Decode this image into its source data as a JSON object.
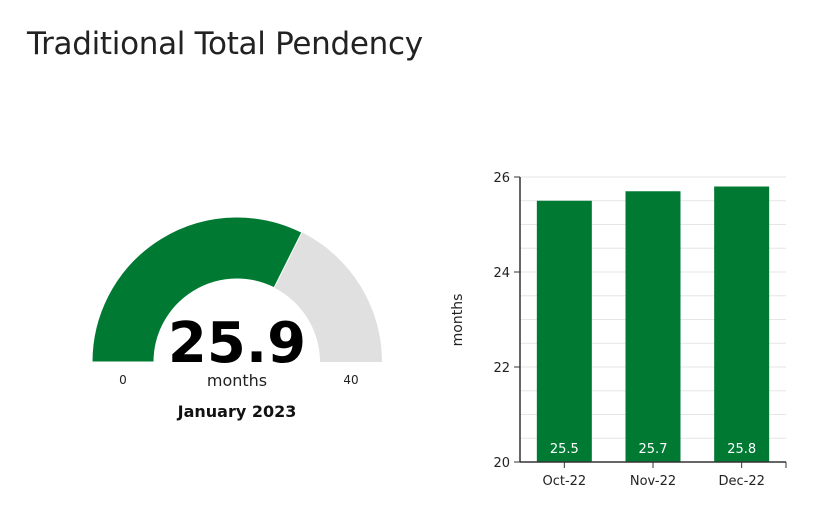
{
  "page": {
    "title": "Traditional Total Pendency"
  },
  "colors": {
    "accent": "#007a33",
    "track": "#e0e0e0",
    "axis": "#333333",
    "grid": "#e6e6e6",
    "text": "#1a1a1a"
  },
  "gauge": {
    "value": "25.9",
    "unit": "months",
    "min_label": "0",
    "max_label": "40",
    "min": 0,
    "max": 40,
    "date_label": "January 2023"
  },
  "chart_data": {
    "type": "bar",
    "categories": [
      "Oct-22",
      "Nov-22",
      "Dec-22"
    ],
    "values": [
      25.5,
      25.7,
      25.8
    ],
    "data_labels": [
      "25.5",
      "25.7",
      "25.8"
    ],
    "ylabel": "months",
    "ylim": [
      20,
      26
    ],
    "yticks": [
      20,
      22,
      24,
      26
    ],
    "grid": true
  }
}
